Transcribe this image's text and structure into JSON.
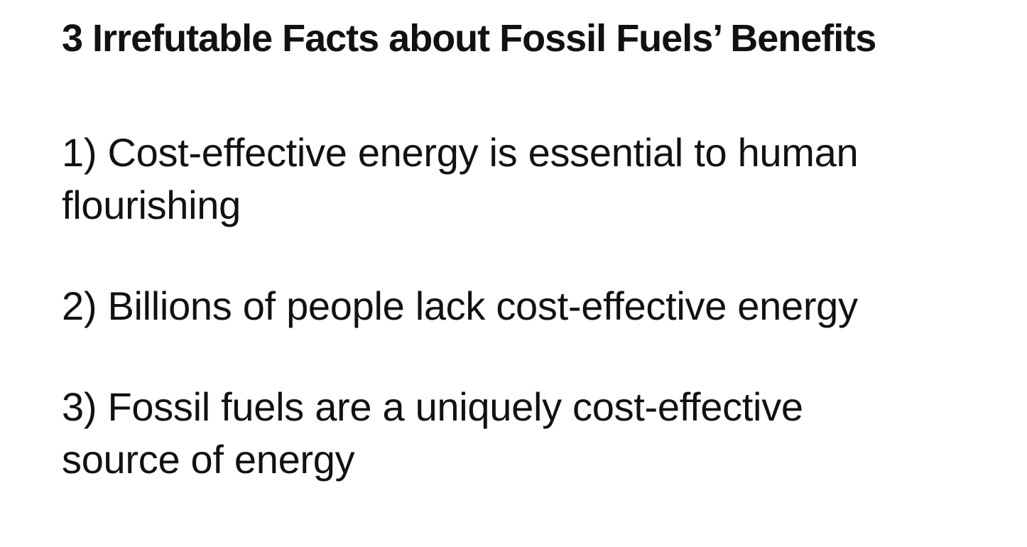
{
  "slide": {
    "title": "3 Irrefutable Facts about Fossil Fuels’ Benefits",
    "facts": [
      {
        "line1": "1) Cost-effective energy is essential to human",
        "line2": "flourishing"
      },
      {
        "line1": "2) Billions of people lack cost-effective energy",
        "line2": ""
      },
      {
        "line1": "3) Fossil fuels are a uniquely cost-effective",
        "line2": "source of energy"
      }
    ]
  }
}
